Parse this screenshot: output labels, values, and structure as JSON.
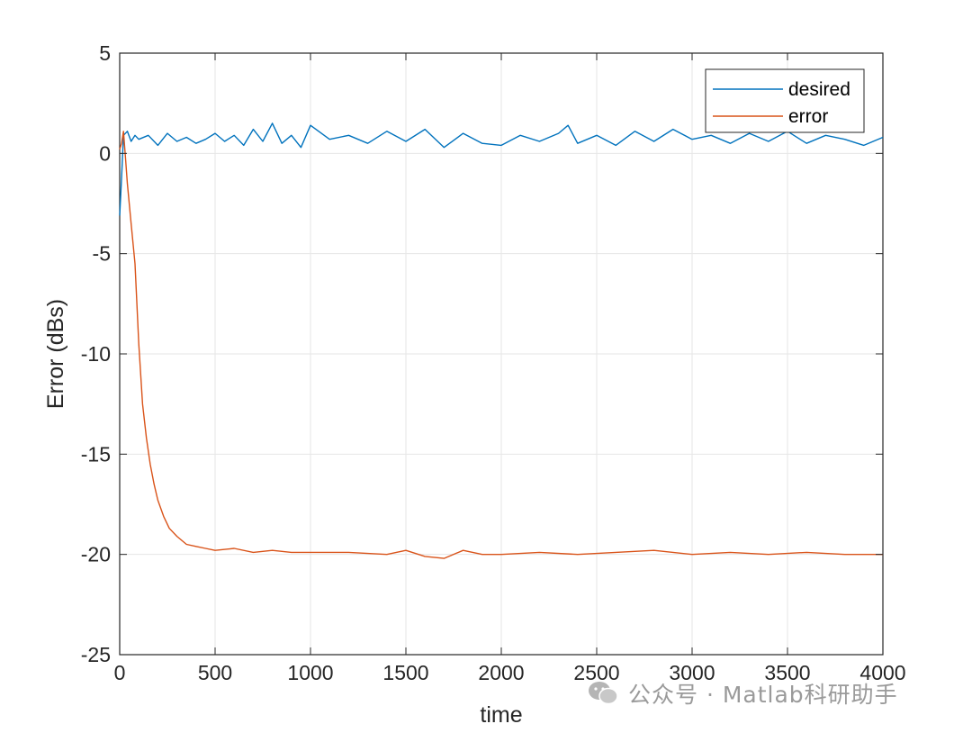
{
  "chart_data": {
    "type": "line",
    "xlabel": "time",
    "ylabel": "Error (dBs)",
    "xlim": [
      0,
      4000
    ],
    "ylim": [
      -25,
      5
    ],
    "xticks": [
      0,
      500,
      1000,
      1500,
      2000,
      2500,
      3000,
      3500,
      4000
    ],
    "yticks": [
      5,
      0,
      -5,
      -10,
      -15,
      -20,
      -25
    ],
    "grid": true,
    "legend_position": "top-right",
    "colors": {
      "desired": "#0072BD",
      "error": "#D95319"
    },
    "series": [
      {
        "name": "desired",
        "x": [
          0,
          10,
          20,
          40,
          60,
          80,
          100,
          150,
          200,
          250,
          300,
          350,
          400,
          450,
          500,
          550,
          600,
          650,
          700,
          750,
          800,
          850,
          900,
          950,
          1000,
          1100,
          1200,
          1300,
          1400,
          1500,
          1600,
          1700,
          1800,
          1900,
          2000,
          2100,
          2200,
          2300,
          2350,
          2400,
          2500,
          2600,
          2700,
          2800,
          2900,
          3000,
          3100,
          3200,
          3300,
          3400,
          3500,
          3600,
          3700,
          3800,
          3900,
          4000
        ],
        "y": [
          -3.1,
          -1.2,
          0.9,
          1.1,
          0.6,
          0.9,
          0.7,
          0.9,
          0.4,
          1.0,
          0.6,
          0.8,
          0.5,
          0.7,
          1.0,
          0.6,
          0.9,
          0.4,
          1.2,
          0.6,
          1.5,
          0.5,
          0.9,
          0.3,
          1.4,
          0.7,
          0.9,
          0.5,
          1.1,
          0.6,
          1.2,
          0.3,
          1.0,
          0.5,
          0.4,
          0.9,
          0.6,
          1.0,
          1.4,
          0.5,
          0.9,
          0.4,
          1.1,
          0.6,
          1.2,
          0.7,
          0.9,
          0.5,
          1.0,
          0.6,
          1.1,
          0.5,
          0.9,
          0.7,
          0.4,
          0.8
        ]
      },
      {
        "name": "error",
        "x": [
          0,
          10,
          20,
          30,
          40,
          60,
          80,
          100,
          120,
          140,
          160,
          180,
          200,
          230,
          260,
          300,
          350,
          400,
          450,
          500,
          600,
          700,
          800,
          900,
          1000,
          1200,
          1400,
          1500,
          1600,
          1700,
          1800,
          1900,
          2000,
          2200,
          2400,
          2600,
          2800,
          3000,
          3200,
          3400,
          3600,
          3800,
          4000
        ],
        "y": [
          0.2,
          0.5,
          1.1,
          -0.2,
          -1.5,
          -3.5,
          -5.5,
          -9.5,
          -12.5,
          -14.2,
          -15.5,
          -16.5,
          -17.3,
          -18.1,
          -18.7,
          -19.1,
          -19.5,
          -19.6,
          -19.7,
          -19.8,
          -19.7,
          -19.9,
          -19.8,
          -19.9,
          -19.9,
          -19.9,
          -20.0,
          -19.8,
          -20.1,
          -20.2,
          -19.8,
          -20.0,
          -20.0,
          -19.9,
          -20.0,
          -19.9,
          -19.8,
          -20.0,
          -19.9,
          -20.0,
          -19.9,
          -20.0,
          -20.0
        ]
      }
    ]
  },
  "watermark": {
    "text": "公众号 · Matlab科研助手",
    "icon": "wechat-icon"
  }
}
